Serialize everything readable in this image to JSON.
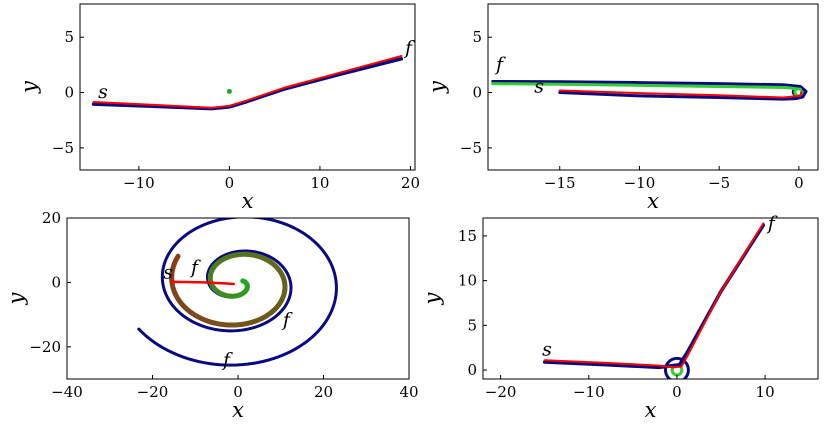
{
  "figure": {
    "layout": "2x2 grid of trajectory plots"
  },
  "chart_data": [
    {
      "type": "line",
      "xlabel": "x",
      "ylabel": "y",
      "xlim": [
        -16.5,
        20.5
      ],
      "ylim": [
        -7,
        8
      ],
      "xticks": [
        -10,
        0,
        10,
        20
      ],
      "yticks": [
        -5,
        0,
        5
      ],
      "xtick_labels": [
        "−10",
        "0",
        "10",
        "20"
      ],
      "ytick_labels": [
        "−5",
        "0",
        "5"
      ],
      "grid": false,
      "series": [
        {
          "color": "#0a0a80",
          "width": 3.5,
          "points": [
            [
              -15,
              -1.05
            ],
            [
              -10,
              -1.2
            ],
            [
              -5,
              -1.35
            ],
            [
              -2,
              -1.45
            ],
            [
              0,
              -1.3
            ],
            [
              2,
              -0.8
            ],
            [
              6,
              0.3
            ],
            [
              12,
              1.6
            ],
            [
              19,
              3.05
            ]
          ]
        },
        {
          "color": "#ff0000",
          "width": 2,
          "points": [
            [
              -15,
              -0.85
            ],
            [
              -10,
              -1.05
            ],
            [
              -5,
              -1.25
            ],
            [
              -2,
              -1.38
            ],
            [
              0,
              -1.2
            ],
            [
              2,
              -0.7
            ],
            [
              6,
              0.42
            ],
            [
              12,
              1.75
            ],
            [
              19,
              3.3
            ]
          ]
        }
      ],
      "markers": [
        {
          "x": 0,
          "y": 0.1,
          "color": "#22aa22"
        }
      ],
      "annotations": [
        {
          "text": "s",
          "x": -14.5,
          "y": -0.5
        },
        {
          "text": "f",
          "x": 19.4,
          "y": 3.5
        }
      ]
    },
    {
      "type": "line",
      "xlabel": "x",
      "ylabel": "y",
      "xlim": [
        -19.5,
        1.2
      ],
      "ylim": [
        -7,
        8
      ],
      "xticks": [
        -15,
        -10,
        -5,
        0
      ],
      "yticks": [
        -5,
        0,
        5
      ],
      "xtick_labels": [
        "−15",
        "−10",
        "−5",
        "0"
      ],
      "ytick_labels": [
        "−5",
        "0",
        "5"
      ],
      "grid": false,
      "series": [
        {
          "color": "#0a0a80",
          "width": 3,
          "points": [
            [
              -19.2,
              1.0
            ],
            [
              -15,
              0.98
            ],
            [
              -10,
              0.9
            ],
            [
              -5,
              0.8
            ],
            [
              -1,
              0.7
            ],
            [
              0.1,
              0.55
            ],
            [
              0.45,
              0.1
            ],
            [
              0.25,
              -0.4
            ],
            [
              -0.2,
              -0.55
            ],
            [
              -1,
              -0.6
            ],
            [
              -5,
              -0.45
            ],
            [
              -10,
              -0.3
            ],
            [
              -15,
              0.0
            ]
          ]
        },
        {
          "color": "#33cc33",
          "width": 3,
          "points": [
            [
              -19.2,
              0.8
            ],
            [
              -15,
              0.75
            ],
            [
              -10,
              0.65
            ],
            [
              -5,
              0.55
            ],
            [
              -0.8,
              0.45
            ],
            [
              0.1,
              0.3
            ]
          ]
        },
        {
          "color": "#ff0000",
          "width": 2,
          "points": [
            [
              -15,
              0.18
            ],
            [
              -10,
              -0.05
            ],
            [
              -5,
              -0.25
            ],
            [
              -1,
              -0.45
            ],
            [
              0.1,
              -0.3
            ],
            [
              0.15,
              0.05
            ]
          ]
        }
      ],
      "loops": [
        {
          "cx": 0.0,
          "cy": 0.05,
          "r": 0.35,
          "color": "#0a0a80"
        },
        {
          "cx": 0.0,
          "cy": 0.05,
          "r": 0.25,
          "color": "#33cc33"
        }
      ],
      "annotations": [
        {
          "text": "f",
          "x": -19.0,
          "y": 2.0
        },
        {
          "text": "s",
          "x": -16.6,
          "y": 0.0
        }
      ]
    },
    {
      "type": "line",
      "xlabel": "x",
      "ylabel": "y",
      "xlim": [
        -40,
        40
      ],
      "ylim": [
        -30,
        20
      ],
      "xticks": [
        -40,
        -20,
        0,
        20,
        40
      ],
      "yticks": [
        -20,
        0,
        20
      ],
      "xtick_labels": [
        "−40",
        "−20",
        "0",
        "20",
        "40"
      ],
      "ytick_labels": [
        "−20",
        "0",
        "20"
      ],
      "grid": false,
      "spirals": [
        {
          "color": "#0a0a80",
          "width": 3,
          "cx": 0,
          "cy": 0,
          "a": 1.6,
          "b": 1.7,
          "theta_max": 15.2,
          "direction": -1,
          "phase": 0
        },
        {
          "color": "#4f6b1a",
          "width": 5,
          "cx": 0,
          "cy": 0,
          "a": 1.2,
          "b": 1.45,
          "theta_max": 10.4,
          "direction": -1,
          "phase": 0.4,
          "gradient": [
            "#22aa22",
            "#8b3a1a"
          ]
        }
      ],
      "series": [
        {
          "color": "#ff0000",
          "width": 2.5,
          "points": [
            [
              -15.5,
              0.2
            ],
            [
              -8,
              0.0
            ],
            [
              -3,
              -0.3
            ],
            [
              -1,
              -0.5
            ]
          ]
        }
      ],
      "annotations": [
        {
          "text": "s",
          "x": -17.5,
          "y": 1.2
        },
        {
          "text": "f",
          "x": -11.0,
          "y": 2.8
        },
        {
          "text": "f",
          "x": 10.5,
          "y": -13.5
        },
        {
          "text": "f",
          "x": -3.5,
          "y": -26.0
        }
      ]
    },
    {
      "type": "line",
      "xlabel": "x",
      "ylabel": "y",
      "xlim": [
        -22,
        16
      ],
      "ylim": [
        -1,
        17
      ],
      "xticks": [
        -20,
        -10,
        0,
        10
      ],
      "yticks": [
        0,
        5,
        10,
        15
      ],
      "xtick_labels": [
        "−20",
        "−10",
        "0",
        "10"
      ],
      "ytick_labels": [
        "0",
        "5",
        "10",
        "15"
      ],
      "grid": false,
      "series": [
        {
          "color": "#0a0a80",
          "width": 3.5,
          "points": [
            [
              -15,
              0.9
            ],
            [
              -8,
              0.6
            ],
            [
              -2,
              0.3
            ],
            [
              0.3,
              0.6
            ],
            [
              1.3,
              2.2
            ],
            [
              5,
              8.8
            ],
            [
              9.8,
              16.2
            ]
          ]
        },
        {
          "color": "#ff0000",
          "width": 2,
          "points": [
            [
              -15,
              1.1
            ],
            [
              -8,
              0.8
            ],
            [
              -2,
              0.5
            ],
            [
              -0.4,
              0.3
            ],
            [
              0.5,
              0.4
            ],
            [
              1.2,
              1.6
            ],
            [
              5,
              8.8
            ],
            [
              9.8,
              16.4
            ]
          ]
        }
      ],
      "loops": [
        {
          "cx": 0.0,
          "cy": 0.0,
          "r": 1.3,
          "color": "#0a0a80"
        },
        {
          "cx": 0.0,
          "cy": 0.0,
          "r": 0.55,
          "color": "#33cc33"
        }
      ],
      "annotations": [
        {
          "text": "s",
          "x": -15.3,
          "y": 1.6
        },
        {
          "text": "f",
          "x": 10.3,
          "y": 15.7
        }
      ]
    }
  ]
}
